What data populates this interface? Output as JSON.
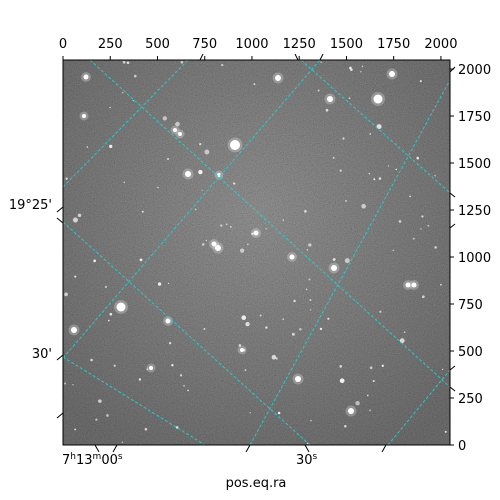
{
  "chart_data": {
    "type": "image",
    "xlabel": "pos.eq.ra",
    "ylabel": "",
    "pixel_axes": {
      "x_ticks": [
        0,
        250,
        500,
        750,
        1000,
        1250,
        1500,
        1750,
        2000
      ],
      "x_tick_labels": [
        "0",
        "250",
        "500",
        "750",
        "1000",
        "1250",
        "1500",
        "1750",
        "2000"
      ],
      "xlim": [
        0,
        2048
      ],
      "y_ticks": [
        0,
        250,
        500,
        750,
        1000,
        1250,
        1500,
        1750,
        2000
      ],
      "y_tick_labels": [
        "0",
        "250",
        "500",
        "750",
        "1000",
        "1250",
        "1500",
        "1750",
        "2000"
      ],
      "ylim": [
        0,
        2048
      ]
    },
    "world_axes": {
      "ra_labels": [
        "7h13m00s",
        "30s"
      ],
      "dec_labels": [
        "19°25'",
        "30'"
      ]
    },
    "grid": true,
    "grid_color": "#22d3d3",
    "image_style": "grayscale noise with point sources"
  }
}
